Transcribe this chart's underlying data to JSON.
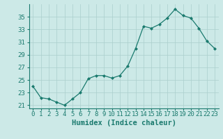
{
  "x": [
    0,
    1,
    2,
    3,
    4,
    5,
    6,
    7,
    8,
    9,
    10,
    11,
    12,
    13,
    14,
    15,
    16,
    17,
    18,
    19,
    20,
    21,
    22,
    23
  ],
  "y": [
    24.0,
    22.2,
    22.0,
    21.5,
    21.0,
    22.0,
    23.0,
    25.2,
    25.7,
    25.7,
    25.3,
    25.7,
    27.2,
    30.0,
    33.5,
    33.2,
    33.8,
    34.8,
    36.2,
    35.2,
    34.8,
    33.2,
    31.2,
    30.0
  ],
  "line_color": "#1a7a6e",
  "marker": "D",
  "marker_size": 2,
  "bg_color": "#cce9e7",
  "grid_color": "#aacfcc",
  "axis_color": "#1a7a6e",
  "xlabel": "Humidex (Indice chaleur)",
  "xlim": [
    -0.5,
    23.5
  ],
  "ylim": [
    20.5,
    37.0
  ],
  "yticks": [
    21,
    23,
    25,
    27,
    29,
    31,
    33,
    35
  ],
  "xlabel_fontsize": 7.5,
  "tick_fontsize": 6.5
}
